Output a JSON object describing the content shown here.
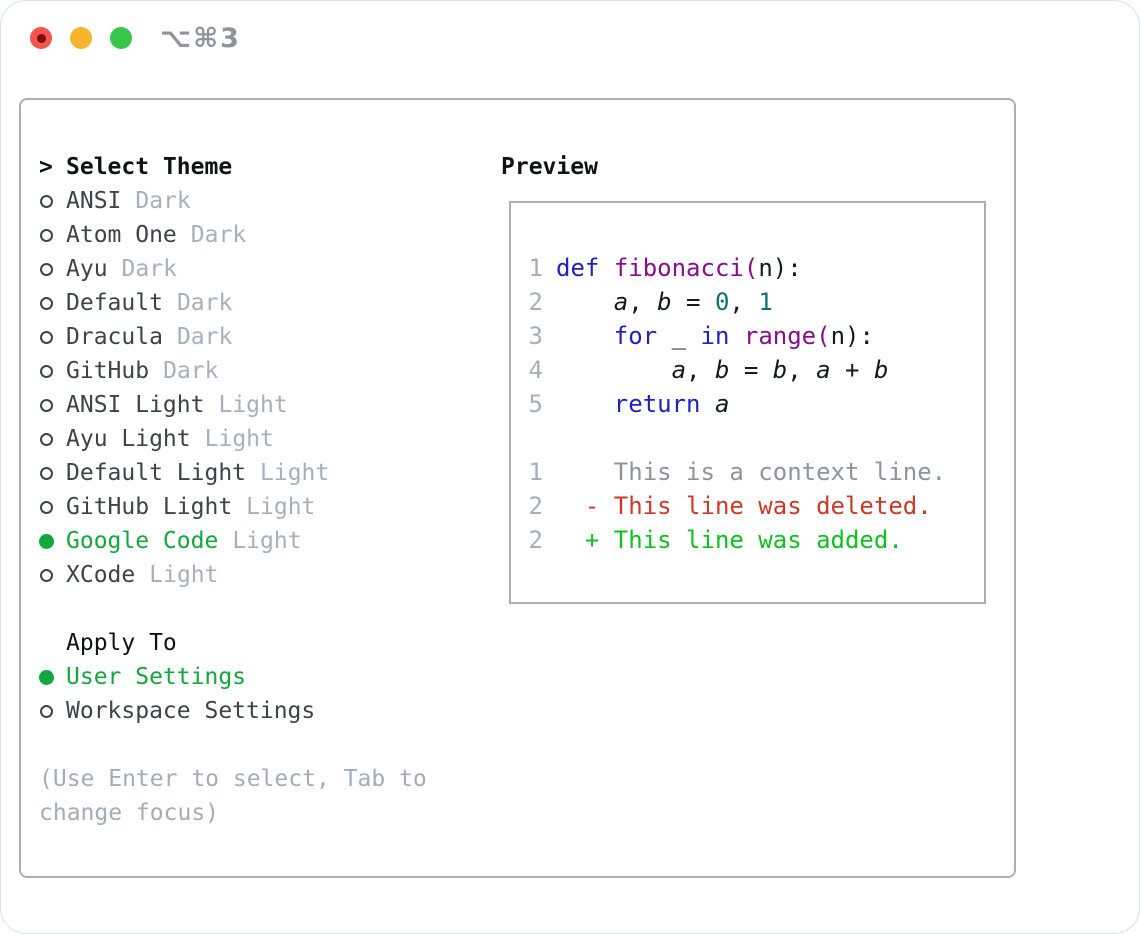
{
  "window": {
    "shortcut_label": "⌥⌘3",
    "traffic_lights": [
      "close",
      "minimize",
      "zoom"
    ]
  },
  "theme_panel": {
    "prompt": ">",
    "header": "Select Theme",
    "items": [
      {
        "name": "ANSI",
        "variant": "Dark",
        "selected": false
      },
      {
        "name": "Atom One",
        "variant": "Dark",
        "selected": false
      },
      {
        "name": "Ayu",
        "variant": "Dark",
        "selected": false
      },
      {
        "name": "Default",
        "variant": "Dark",
        "selected": false
      },
      {
        "name": "Dracula",
        "variant": "Dark",
        "selected": false
      },
      {
        "name": "GitHub",
        "variant": "Dark",
        "selected": false
      },
      {
        "name": "ANSI Light",
        "variant": "Light",
        "selected": false
      },
      {
        "name": "Ayu Light",
        "variant": "Light",
        "selected": false
      },
      {
        "name": "Default Light",
        "variant": "Light",
        "selected": false
      },
      {
        "name": "GitHub Light",
        "variant": "Light",
        "selected": false
      },
      {
        "name": "Google Code",
        "variant": "Light",
        "selected": true
      },
      {
        "name": "XCode",
        "variant": "Light",
        "selected": false
      }
    ]
  },
  "apply_to": {
    "header": "Apply To",
    "options": [
      {
        "label": "User Settings",
        "selected": true
      },
      {
        "label": "Workspace Settings",
        "selected": false
      }
    ]
  },
  "hint": "(Use Enter to select, Tab to\nchange focus)",
  "preview": {
    "header": "Preview",
    "code_lines": [
      {
        "num": "1",
        "tokens": [
          {
            "text": "def",
            "type": "kw"
          },
          {
            "text": " ",
            "type": "pl"
          },
          {
            "text": "fibonacci(",
            "type": "fn"
          },
          {
            "text": "n):",
            "type": "pl"
          }
        ]
      },
      {
        "num": "2",
        "tokens": [
          {
            "text": "    ",
            "type": "pl"
          },
          {
            "text": "a",
            "type": "var"
          },
          {
            "text": ", ",
            "type": "pl"
          },
          {
            "text": "b",
            "type": "var"
          },
          {
            "text": " = ",
            "type": "pl"
          },
          {
            "text": "0",
            "type": "num"
          },
          {
            "text": ", ",
            "type": "pl"
          },
          {
            "text": "1",
            "type": "num"
          }
        ]
      },
      {
        "num": "3",
        "tokens": [
          {
            "text": "    ",
            "type": "pl"
          },
          {
            "text": "for",
            "type": "kw"
          },
          {
            "text": " _ ",
            "type": "pl"
          },
          {
            "text": "in",
            "type": "kw"
          },
          {
            "text": " ",
            "type": "pl"
          },
          {
            "text": "range(",
            "type": "fn"
          },
          {
            "text": "n):",
            "type": "pl"
          }
        ]
      },
      {
        "num": "4",
        "tokens": [
          {
            "text": "        ",
            "type": "pl"
          },
          {
            "text": "a",
            "type": "var"
          },
          {
            "text": ", ",
            "type": "pl"
          },
          {
            "text": "b",
            "type": "var"
          },
          {
            "text": " = ",
            "type": "pl"
          },
          {
            "text": "b",
            "type": "var"
          },
          {
            "text": ", ",
            "type": "pl"
          },
          {
            "text": "a",
            "type": "var"
          },
          {
            "text": " + ",
            "type": "pl"
          },
          {
            "text": "b",
            "type": "var"
          }
        ]
      },
      {
        "num": "5",
        "tokens": [
          {
            "text": "    ",
            "type": "pl"
          },
          {
            "text": "return",
            "type": "kw"
          },
          {
            "text": " ",
            "type": "pl"
          },
          {
            "text": "a",
            "type": "var"
          }
        ]
      }
    ],
    "diff_lines": [
      {
        "num": "1",
        "text": "    This is a context line.",
        "type": "context"
      },
      {
        "num": "2",
        "text": "  - This line was deleted.",
        "type": "deleted"
      },
      {
        "num": "2",
        "text": "  + This line was added.",
        "type": "added"
      }
    ]
  },
  "colors": {
    "selected_green": "#13a83e",
    "added_green": "#10c020",
    "deleted_red": "#cb3927",
    "keyword_blue": "#2222bb",
    "function_purple": "#8a0d8a",
    "number_teal": "#0f7272",
    "context_gray": "#8d949d",
    "line_number_gray": "#a4afbb",
    "tag_gray": "#a6b0bc",
    "item_dark": "#3d4349",
    "hint_gray": "#a3adb8",
    "border_gray": "#a8afb6",
    "shortcut_gray": "#8e949b",
    "traffic_red": "#f4544c",
    "traffic_red_dot": "#7a100d",
    "traffic_yellow": "#f6b52d",
    "traffic_green": "#36c64a"
  }
}
